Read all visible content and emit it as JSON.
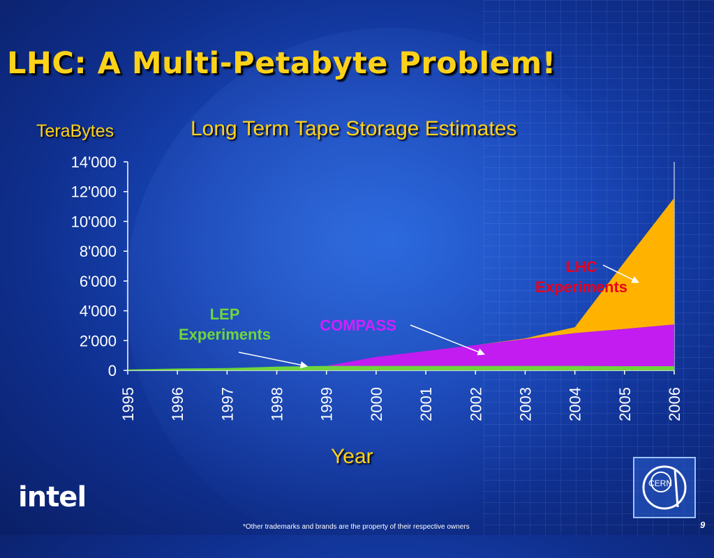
{
  "slide": {
    "title": "LHC: A Multi-Petabyte Problem!",
    "footer_note": "*Other trademarks and brands are the property of their respective owners",
    "page_number": "9",
    "logo_left": "intel",
    "logo_right": "CERN"
  },
  "colors": {
    "title": "#ffd21a",
    "lep": "#6fd63c",
    "compass": "#c21cf0",
    "lhc": "#ffb300",
    "lhc_label": "#e8001c",
    "compass_label": "#d21fff"
  },
  "chart_data": {
    "type": "area",
    "title": "Long Term Tape Storage Estimates",
    "ylabel": "TeraBytes",
    "xlabel": "Year",
    "x": [
      "1995",
      "1996",
      "1997",
      "1998",
      "1999",
      "2000",
      "2001",
      "2002",
      "2003",
      "2004",
      "2005",
      "2006"
    ],
    "ylim": [
      0,
      14000
    ],
    "yticks": [
      "0",
      "2'000",
      "4'000",
      "6'000",
      "8'000",
      "10'000",
      "12'000",
      "14'000"
    ],
    "stacked": true,
    "series": [
      {
        "name": "LEP Experiments",
        "color": "#6fd63c",
        "values": [
          60,
          120,
          150,
          250,
          300,
          300,
          300,
          300,
          300,
          300,
          280,
          280
        ]
      },
      {
        "name": "COMPASS",
        "color": "#c21cf0",
        "values": [
          0,
          0,
          0,
          0,
          0,
          600,
          1000,
          1400,
          1800,
          2200,
          2500,
          2800
        ]
      },
      {
        "name": "LHC Experiments",
        "color": "#ffb300",
        "values": [
          0,
          0,
          0,
          0,
          0,
          0,
          0,
          0,
          50,
          400,
          4500,
          8500
        ]
      }
    ],
    "annotations": [
      {
        "text_lines": [
          "LEP",
          "Experiments"
        ],
        "color": "#6fd63c",
        "x": "1998.6",
        "y": 150
      },
      {
        "text_lines": [
          "COMPASS"
        ],
        "color": "#d21fff",
        "x": "2002.2",
        "y": 1000
      },
      {
        "text_lines": [
          "LHC",
          "Experiments"
        ],
        "color": "#e8001c",
        "x": "2005.6",
        "y": 5900
      }
    ]
  }
}
